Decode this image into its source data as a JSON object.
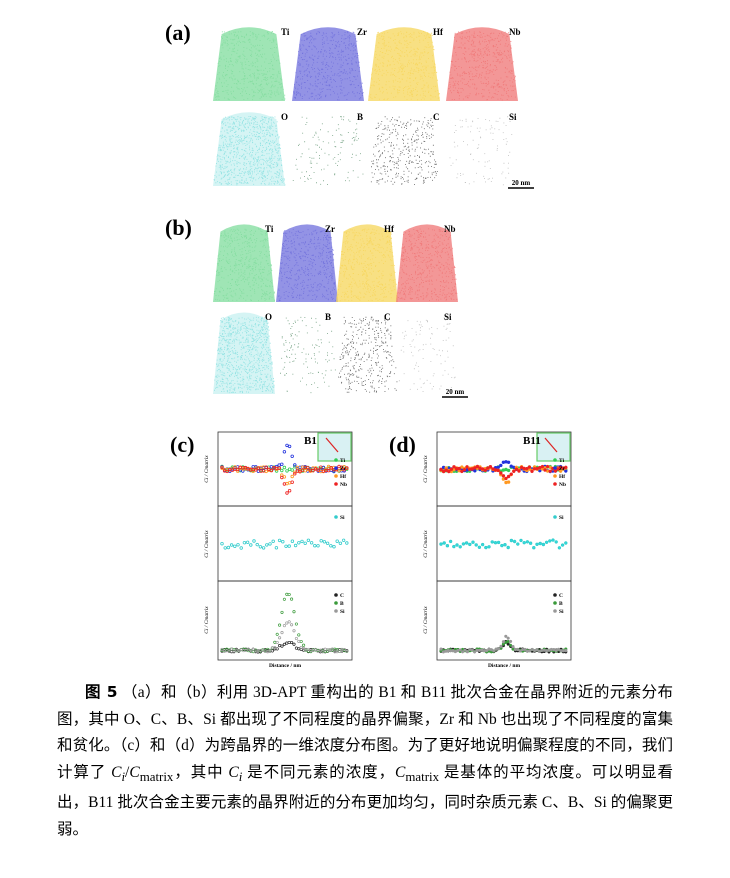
{
  "figure": {
    "panel_a": {
      "label": "(a)",
      "elements": [
        "Ti",
        "Zr",
        "Hf",
        "Nb",
        "O",
        "B",
        "C",
        "Si"
      ],
      "scale_bar": "20 nm"
    },
    "panel_b": {
      "label": "(b)",
      "elements": [
        "Ti",
        "Zr",
        "Hf",
        "Nb",
        "O",
        "B",
        "C",
        "Si"
      ],
      "scale_bar": "20 nm"
    },
    "panel_c": {
      "label": "(c)",
      "sample": "B1",
      "x_label": "Distance / nm",
      "y_label": "Ci / Cmatrix",
      "legends": [
        [
          "Ti",
          "Zr",
          "Hf",
          "Nb"
        ],
        [
          "Si"
        ],
        [
          "C",
          "B",
          "Si"
        ]
      ]
    },
    "panel_d": {
      "label": "(d)",
      "sample": "B11",
      "x_label": "Distance / nm",
      "y_label": "Ci / Cmatrix",
      "legends": [
        [
          "Ti",
          "Zr",
          "Hf",
          "Nb"
        ],
        [
          "Si"
        ],
        [
          "C",
          "B",
          "Si"
        ]
      ]
    }
  },
  "caption": {
    "label": "图 5",
    "parts": [
      "（a）和（b）利用 3D-APT 重构出的 B1 和 B11 批次合金在晶界附近的元素分布图，其中 O、C、B、Si 都出现了不同程度的晶界偏聚，Zr 和 Nb 也出现了不同程度的富集和贫化。（c）和（d）为跨晶界的一维浓度分布图。为了更好地说明偏聚程度的不同，我们计算了 ",
      "C",
      "i",
      "/",
      "C",
      "matrix",
      "，其中 ",
      "C",
      "i",
      " 是不同元素的浓度，",
      "C",
      "matrix",
      " 是基体的平均浓度。可以明显看出，B11 批次合金主要元素的晶界附近的分布更加均匀，同时杂质元素 C、B、Si 的偏聚更弱。"
    ]
  }
}
